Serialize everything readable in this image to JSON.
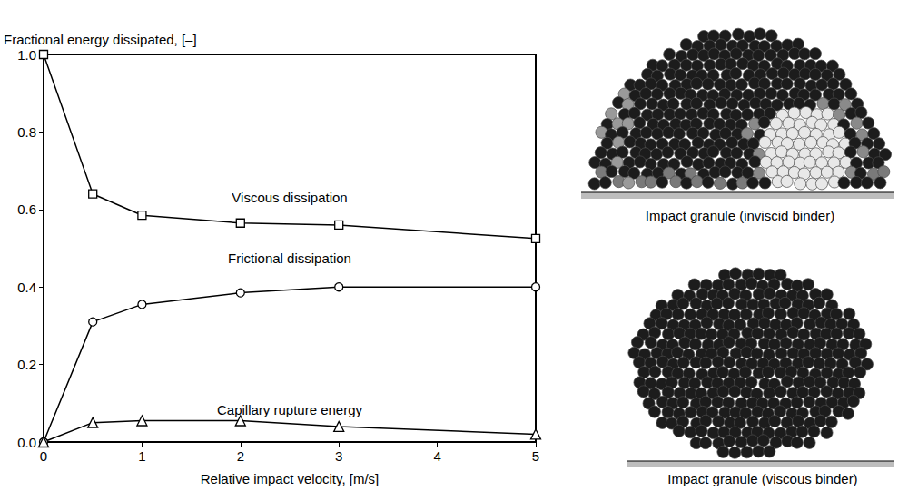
{
  "chart_data": {
    "type": "line",
    "x_label": "Relative impact velocity, [m/s]",
    "y_label": "Fractional energy dissipated, [–]",
    "x": [
      0,
      0.5,
      1,
      2,
      3,
      5
    ],
    "series": [
      {
        "name": "Viscous dissipation",
        "color": "#000000",
        "marker": "square",
        "values": [
          1.0,
          0.64,
          0.585,
          0.565,
          0.56,
          0.525
        ]
      },
      {
        "name": "Frictional dissipation",
        "color": "#000000",
        "marker": "circle",
        "values": [
          0.0,
          0.31,
          0.355,
          0.385,
          0.4,
          0.4
        ]
      },
      {
        "name": "Capillary rupture energy",
        "color": "#000000",
        "marker": "triangle",
        "values": [
          0.0,
          0.05,
          0.055,
          0.055,
          0.04,
          0.02
        ]
      }
    ],
    "xlim": [
      0,
      5
    ],
    "xticks": [
      0,
      1,
      2,
      3,
      4,
      5
    ],
    "ylim": [
      0,
      1
    ],
    "yticks": [
      {
        "value": 0,
        "label": "0.0"
      },
      {
        "value": 0.2,
        "label": "0.2"
      },
      {
        "value": 0.4,
        "label": "0.4"
      },
      {
        "value": 0.6,
        "label": "0.6"
      },
      {
        "value": 0.8,
        "label": "0.8"
      },
      {
        "value": 1,
        "label": "1.0"
      }
    ],
    "grid": false
  },
  "illustrations": [
    {
      "caption": "Impact granule (inviscid binder)"
    },
    {
      "caption": "Impact granule (viscous binder)"
    }
  ]
}
